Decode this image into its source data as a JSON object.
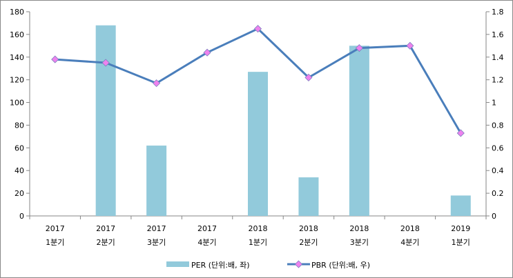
{
  "chart_data": {
    "type": "bar+line",
    "categories": [
      [
        "2017",
        "1분기"
      ],
      [
        "2017",
        "2분기"
      ],
      [
        "2017",
        "3분기"
      ],
      [
        "2017",
        "4분기"
      ],
      [
        "2018",
        "1분기"
      ],
      [
        "2018",
        "2분기"
      ],
      [
        "2018",
        "3분기"
      ],
      [
        "2018",
        "4분기"
      ],
      [
        "2019",
        "1분기"
      ]
    ],
    "series": [
      {
        "name": "PER (단위:배, 좌)",
        "type": "bar",
        "axis": "left",
        "color": "#92CADB",
        "values": [
          null,
          168,
          62,
          null,
          127,
          34,
          150,
          null,
          18
        ]
      },
      {
        "name": "PBR (단위:배, 우)",
        "type": "line",
        "axis": "right",
        "color": "#4A7EBB",
        "marker_color": "#EE82EE",
        "values": [
          1.38,
          1.35,
          1.17,
          1.44,
          1.65,
          1.22,
          1.48,
          1.5,
          0.73
        ]
      }
    ],
    "left_axis": {
      "range": [
        0,
        180
      ],
      "ticks": [
        "0",
        "20",
        "40",
        "60",
        "80",
        "100",
        "120",
        "140",
        "160",
        "180"
      ]
    },
    "right_axis": {
      "range": [
        0,
        1.8
      ],
      "ticks": [
        "0",
        "0.2",
        "0.4",
        "0.6",
        "0.8",
        "1",
        "1.2",
        "1.4",
        "1.6",
        "1.8"
      ]
    },
    "legend": "bottom",
    "grid": false
  }
}
